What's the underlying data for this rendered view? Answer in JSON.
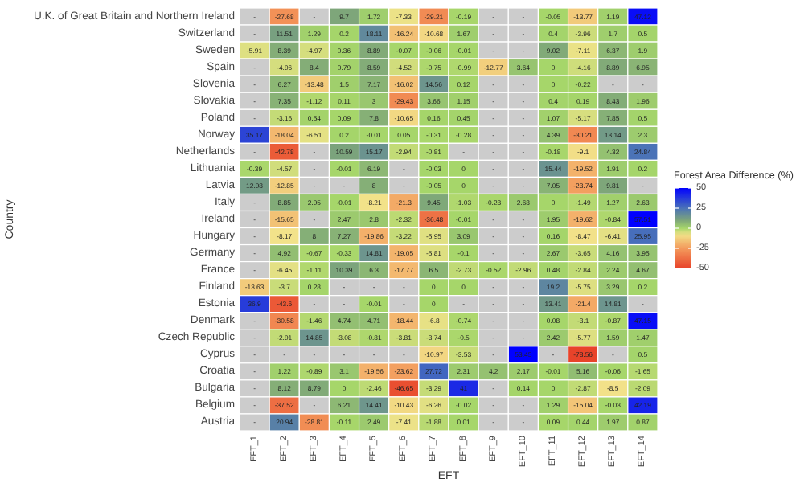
{
  "chart_data": {
    "type": "heatmap",
    "xlabel": "EFT",
    "ylabel": "Country",
    "clabel": "Forest Area Difference (%)",
    "categories": [
      "EFT_1",
      "EFT_2",
      "EFT_3",
      "EFT_4",
      "EFT_5",
      "EFT_6",
      "EFT_7",
      "EFT_8",
      "EFT_9",
      "EFT_10",
      "EFT_11",
      "EFT_12",
      "EFT_13",
      "EFT_14"
    ],
    "y_categories": [
      "U.K. of Great Britain and Northern Ireland",
      "Switzerland",
      "Sweden",
      "Spain",
      "Slovenia",
      "Slovakia",
      "Poland",
      "Norway",
      "Netherlands",
      "Lithuania",
      "Latvia",
      "Italy",
      "Ireland",
      "Hungary",
      "Germany",
      "France",
      "Finland",
      "Estonia",
      "Denmark",
      "Czech Republic",
      "Cyprus",
      "Croatia",
      "Bulgaria",
      "Belgium",
      "Austria"
    ],
    "clim": [
      -50,
      50
    ],
    "cticks": [
      -50,
      -25,
      0,
      25,
      50
    ],
    "cells": [
      [
        null,
        -27.68,
        null,
        9.7,
        1.72,
        -7.33,
        -29.21,
        -0.19,
        null,
        null,
        -0.05,
        -13.77,
        1.19,
        47.12
      ],
      [
        null,
        11.51,
        1.29,
        0.2,
        18.11,
        -16.24,
        -10.68,
        1.67,
        null,
        null,
        0.4,
        -3.96,
        1.7,
        0.5
      ],
      [
        -5.91,
        8.39,
        -4.97,
        0.36,
        8.89,
        -0.07,
        -0.06,
        -0.01,
        null,
        null,
        9.02,
        -7.11,
        6.37,
        1.9
      ],
      [
        null,
        -4.96,
        8.4,
        0.79,
        8.59,
        -4.52,
        -0.75,
        -0.99,
        -12.77,
        3.64,
        0,
        -4.16,
        8.89,
        6.95
      ],
      [
        null,
        6.27,
        -13.48,
        1.5,
        7.17,
        -16.02,
        14.56,
        0.12,
        null,
        null,
        0,
        -0.22,
        null,
        null
      ],
      [
        null,
        7.35,
        -1.12,
        0.11,
        3,
        -29.43,
        3.66,
        1.15,
        null,
        null,
        0.4,
        0.19,
        8.43,
        1.96
      ],
      [
        null,
        -3.16,
        0.54,
        0.09,
        7.8,
        -10.65,
        0.16,
        0.45,
        null,
        null,
        1.07,
        -5.17,
        7.85,
        0.5
      ],
      [
        35.17,
        -18.04,
        -6.51,
        0.2,
        -0.01,
        0.05,
        -0.31,
        -0.28,
        null,
        null,
        4.39,
        -30.21,
        13.14,
        2.3
      ],
      [
        null,
        -42.78,
        null,
        10.59,
        15.17,
        -2.94,
        -0.81,
        null,
        null,
        null,
        -0.18,
        -9.1,
        4.32,
        24.84
      ],
      [
        -0.39,
        -4.57,
        null,
        -0.01,
        6.19,
        null,
        -0.03,
        0,
        null,
        null,
        15.44,
        -19.52,
        1.91,
        0.2
      ],
      [
        12.98,
        -12.85,
        null,
        null,
        8,
        null,
        -0.05,
        0,
        null,
        null,
        7.05,
        -23.74,
        9.81,
        null
      ],
      [
        null,
        8.85,
        2.95,
        -0.01,
        -8.21,
        -21.3,
        9.45,
        -1.03,
        -0.28,
        2.68,
        0,
        -1.49,
        1.27,
        2.63
      ],
      [
        null,
        -15.65,
        null,
        2.47,
        2.8,
        -2.32,
        -36.48,
        -0.01,
        null,
        null,
        1.95,
        -19.62,
        -0.84,
        57.51
      ],
      [
        null,
        -8.17,
        8,
        7.27,
        -19.86,
        -3.22,
        -5.95,
        3.09,
        null,
        null,
        0.16,
        -8.47,
        -6.41,
        25.95
      ],
      [
        null,
        4.92,
        -0.67,
        -0.33,
        14.81,
        -19.05,
        -5.81,
        -0.1,
        null,
        null,
        2.67,
        -3.65,
        4.16,
        3.95
      ],
      [
        null,
        -6.45,
        -1.11,
        10.39,
        6.3,
        -17.77,
        6.5,
        -2.73,
        -0.52,
        -2.96,
        0.48,
        -2.84,
        2.24,
        4.67
      ],
      [
        -13.63,
        -3.7,
        0.28,
        null,
        null,
        null,
        0,
        0,
        null,
        null,
        19.2,
        -5.75,
        3.29,
        0.2
      ],
      [
        36.9,
        -43.6,
        null,
        null,
        -0.01,
        null,
        0,
        null,
        null,
        null,
        13.41,
        -21.4,
        14.81,
        null
      ],
      [
        null,
        -30.58,
        -1.46,
        4.74,
        4.71,
        -18.44,
        -6.8,
        -0.74,
        null,
        null,
        0.08,
        -3.1,
        -0.87,
        47.15
      ],
      [
        null,
        -2.91,
        14.85,
        -3.08,
        -0.81,
        -3.81,
        -3.74,
        -0.5,
        null,
        null,
        2.42,
        -5.77,
        1.59,
        1.47
      ],
      [
        null,
        null,
        null,
        null,
        null,
        null,
        -10.97,
        -3.53,
        null,
        53.45,
        null,
        -78.56,
        null,
        0.5
      ],
      [
        null,
        1.22,
        -0.89,
        3.1,
        -19.56,
        -23.62,
        27.72,
        2.31,
        4.2,
        2.17,
        -0.01,
        5.16,
        -0.06,
        -1.65
      ],
      [
        null,
        8.12,
        8.79,
        0,
        -2.46,
        -46.65,
        -3.29,
        41,
        null,
        0.14,
        0,
        -2.87,
        -8.5,
        -2.09
      ],
      [
        null,
        -37.52,
        null,
        6.21,
        14.41,
        -10.43,
        -6.26,
        -0.02,
        null,
        null,
        1.29,
        -15.04,
        -0.03,
        42.19
      ],
      [
        null,
        20.94,
        -28.81,
        -0.11,
        2.49,
        -7.41,
        -1.88,
        0.01,
        null,
        null,
        0.09,
        0.44,
        1.97,
        0.87
      ]
    ],
    "cell_labels": [
      [
        "-",
        "-27.68",
        "-",
        "9.7",
        "1.72",
        "-7.33",
        "-29.21",
        "-0.19",
        "-",
        "-",
        "-0.05",
        "-13.77",
        "1.19",
        "47.12"
      ],
      [
        "-",
        "11.51",
        "1.29",
        "0.2",
        "18.11",
        "-16.24",
        "-10.68",
        "1.67",
        "-",
        "-",
        "0.4",
        "-3.96",
        "1.7",
        "0.5"
      ],
      [
        "-5.91",
        "8.39",
        "-4.97",
        "0.36",
        "8.89",
        "-0.07",
        "-0.06",
        "-0.01",
        "-",
        "-",
        "9.02",
        "-7.11",
        "6.37",
        "1.9"
      ],
      [
        "-",
        "-4.96",
        "8.4",
        "0.79",
        "8.59",
        "-4.52",
        "-0.75",
        "-0.99",
        "-12.77",
        "3.64",
        "0",
        "-4.16",
        "8.89",
        "6.95"
      ],
      [
        "-",
        "6.27",
        "-13.48",
        "1.5",
        "7.17",
        "-16.02",
        "14.56",
        "0.12",
        "-",
        "-",
        "0",
        "-0.22",
        "-",
        "-"
      ],
      [
        "-",
        "7.35",
        "-1.12",
        "0.11",
        "3",
        "-29.43",
        "3.66",
        "1.15",
        "-",
        "-",
        "0.4",
        "0.19",
        "8.43",
        "1.96"
      ],
      [
        "-",
        "-3.16",
        "0.54",
        "0.09",
        "7.8",
        "-10.65",
        "0.16",
        "0.45",
        "-",
        "-",
        "1.07",
        "-5.17",
        "7.85",
        "0.5"
      ],
      [
        "35.17",
        "-18.04",
        "-6.51",
        "0.2",
        "-0.01",
        "0.05",
        "-0.31",
        "-0.28",
        "-",
        "-",
        "4.39",
        "-30.21",
        "13.14",
        "2.3"
      ],
      [
        "-",
        "-42.78",
        "-",
        "10.59",
        "15.17",
        "-2.94",
        "-0.81",
        "-",
        "-",
        "-",
        "-0.18",
        "-9.1",
        "4.32",
        "24.84"
      ],
      [
        "-0.39",
        "-4.57",
        "-",
        "-0.01",
        "6.19",
        "-",
        "-0.03",
        "0",
        "-",
        "-",
        "15.44",
        "-19.52",
        "1.91",
        "0.2"
      ],
      [
        "12.98",
        "-12.85",
        "-",
        "-",
        "8",
        "-",
        "-0.05",
        "0",
        "-",
        "-",
        "7.05",
        "-23.74",
        "9.81",
        "-"
      ],
      [
        "-",
        "8.85",
        "2.95",
        "-0.01",
        "-8.21",
        "-21.3",
        "9.45",
        "-1.03",
        "-0.28",
        "2.68",
        "0",
        "-1.49",
        "1.27",
        "2.63"
      ],
      [
        "-",
        "-15.65",
        "-",
        "2.47",
        "2.8",
        "-2.32",
        "-36.48",
        "-0.01",
        "-",
        "-",
        "1.95",
        "-19.62",
        "-0.84",
        "57.51"
      ],
      [
        "-",
        "-8.17",
        "8",
        "7.27",
        "-19.86",
        "-3.22",
        "-5.95",
        "3.09",
        "-",
        "-",
        "0.16",
        "-8.47",
        "-6.41",
        "25.95"
      ],
      [
        "-",
        "4.92",
        "-0.67",
        "-0.33",
        "14.81",
        "-19.05",
        "-5.81",
        "-0.1",
        "-",
        "-",
        "2.67",
        "-3.65",
        "4.16",
        "3.95"
      ],
      [
        "-",
        "-6.45",
        "-1.11",
        "10.39",
        "6.3",
        "-17.77",
        "6.5",
        "-2.73",
        "-0.52",
        "-2.96",
        "0.48",
        "-2.84",
        "2.24",
        "4.67"
      ],
      [
        "-13.63",
        "-3.7",
        "0.28",
        "-",
        "-",
        "-",
        "0",
        "0",
        "-",
        "-",
        "19.2",
        "-5.75",
        "3.29",
        "0.2"
      ],
      [
        "36.9",
        "-43.6",
        "-",
        "-",
        "-0.01",
        "-",
        "0",
        "-",
        "-",
        "-",
        "13.41",
        "-21.4",
        "14.81",
        "-"
      ],
      [
        "-",
        "-30.58",
        "-1.46",
        "4.74",
        "4.71",
        "-18.44",
        "-6.8",
        "-0.74",
        "-",
        "-",
        "0.08",
        "-3.1",
        "-0.87",
        "47.15"
      ],
      [
        "-",
        "-2.91",
        "14.85",
        "-3.08",
        "-0.81",
        "-3.81",
        "-3.74",
        "-0.5",
        "-",
        "-",
        "2.42",
        "-5.77",
        "1.59",
        "1.47"
      ],
      [
        "-",
        "-",
        "-",
        "-",
        "-",
        "-",
        "-10.97",
        "-3.53",
        "-",
        "53.45",
        "-",
        "-78.56",
        "-",
        "0.5"
      ],
      [
        "-",
        "1.22",
        "-0.89",
        "3.1",
        "-19.56",
        "-23.62",
        "27.72",
        "2.31",
        "4.2",
        "2.17",
        "-0.01",
        "5.16",
        "-0.06",
        "-1.65"
      ],
      [
        "-",
        "8.12",
        "8.79",
        "0",
        "-2.46",
        "-46.65",
        "-3.29",
        "41",
        "-",
        "0.14",
        "0",
        "-2.87",
        "-8.5",
        "-2.09"
      ],
      [
        "-",
        "-37.52",
        "-",
        "6.21",
        "14.41",
        "-10.43",
        "-6.26",
        "-0.02",
        "-",
        "-",
        "1.29",
        "-15.04",
        "-0.03",
        "42.19"
      ],
      [
        "-",
        "20.94",
        "-28.81",
        "-0.11",
        "2.49",
        "-7.41",
        "-1.88",
        "0.01",
        "-",
        "-",
        "0.09",
        "0.44",
        "1.97",
        "0.87"
      ]
    ]
  }
}
